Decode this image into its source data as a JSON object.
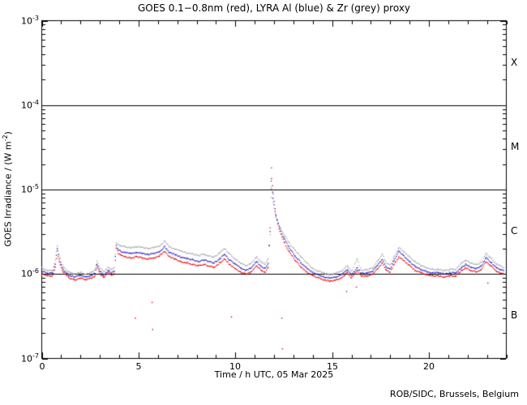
{
  "page": {
    "credit": "ROB/SIDC, Brussels, Belgium"
  },
  "chart_data": {
    "type": "line",
    "title": "GOES 0.1−0.8nm (red), LYRA Al (blue) & Zr (grey) proxy",
    "xlabel": "Time / h UTC, 05 Mar 2025",
    "ylabel_parts": {
      "pre": "GOES Irradiance / (W m",
      "sup": "-2",
      "post": ")"
    },
    "xlim": [
      0,
      24
    ],
    "ylim": [
      1e-07,
      0.001
    ],
    "x_ticks": [
      0,
      5,
      10,
      15,
      20
    ],
    "x_minor_step_h": 1,
    "y_tick_exponents": [
      -3,
      -4,
      -5,
      -6,
      -7
    ],
    "y_scale": "log",
    "grid": "off",
    "legend": "colors named in title",
    "flare_class_lines_W_m2": [
      0.0001,
      1e-05,
      1e-06
    ],
    "flare_class_labels": [
      {
        "label": "X",
        "between_exponents": [
          -4,
          -3
        ]
      },
      {
        "label": "M",
        "between_exponents": [
          -5,
          -4
        ]
      },
      {
        "label": "C",
        "between_exponents": [
          -6,
          -5
        ]
      },
      {
        "label": "B",
        "between_exponents": [
          -7,
          -6
        ]
      }
    ],
    "value_unit": "1e-6 W m^-2",
    "hours": [
      0.0,
      0.3,
      0.55,
      0.7,
      0.8,
      0.9,
      1.1,
      1.4,
      1.7,
      2.0,
      2.3,
      2.6,
      2.75,
      2.85,
      3.0,
      3.2,
      3.45,
      3.6,
      3.75,
      3.85,
      3.95,
      4.1,
      4.3,
      4.6,
      4.9,
      5.2,
      5.5,
      5.8,
      6.1,
      6.35,
      6.6,
      6.9,
      7.2,
      7.5,
      7.8,
      8.1,
      8.4,
      8.6,
      8.9,
      9.2,
      9.45,
      9.7,
      10.0,
      10.3,
      10.55,
      10.8,
      11.1,
      11.35,
      11.55,
      11.7,
      11.8,
      11.87,
      11.95,
      12.1,
      12.3,
      12.55,
      12.8,
      13.1,
      13.4,
      13.7,
      14.0,
      14.3,
      14.6,
      14.9,
      15.2,
      15.5,
      15.8,
      16.0,
      16.3,
      16.5,
      16.8,
      17.1,
      17.35,
      17.6,
      17.8,
      18.0,
      18.2,
      18.45,
      18.7,
      19.0,
      19.3,
      19.6,
      19.9,
      20.2,
      20.5,
      20.8,
      21.1,
      21.4,
      21.7,
      21.9,
      22.2,
      22.45,
      22.7,
      22.95,
      23.2,
      23.5,
      23.7,
      23.9
    ],
    "series": [
      {
        "name": "GOES 0.1-0.8nm",
        "color": "#e60000",
        "values": [
          1.0,
          0.95,
          0.95,
          1.2,
          1.9,
          1.4,
          1.05,
          0.9,
          0.85,
          0.9,
          0.85,
          0.9,
          0.95,
          1.25,
          1.0,
          0.9,
          1.05,
          0.95,
          1.0,
          2.0,
          1.75,
          1.65,
          1.6,
          1.55,
          1.6,
          1.55,
          1.5,
          1.55,
          1.65,
          1.85,
          1.6,
          1.5,
          1.4,
          1.35,
          1.3,
          1.25,
          1.3,
          1.25,
          1.2,
          1.35,
          1.5,
          1.3,
          1.15,
          1.05,
          1.0,
          1.05,
          1.25,
          1.1,
          1.05,
          1.2,
          3.5,
          18.0,
          9.0,
          5.0,
          3.2,
          2.3,
          1.8,
          1.45,
          1.2,
          1.05,
          0.95,
          0.9,
          0.85,
          0.82,
          0.85,
          0.9,
          1.05,
          0.9,
          1.1,
          0.95,
          0.95,
          1.0,
          1.15,
          1.35,
          1.1,
          1.05,
          1.3,
          1.6,
          1.45,
          1.25,
          1.1,
          1.03,
          0.98,
          0.95,
          0.95,
          0.92,
          0.95,
          0.95,
          1.1,
          1.18,
          1.1,
          1.06,
          1.12,
          1.4,
          1.25,
          1.08,
          1.03,
          1.0
        ]
      },
      {
        "name": "LYRA Al proxy",
        "color": "#1a1abf",
        "values": [
          1.08,
          1.02,
          1.02,
          1.3,
          2.0,
          1.5,
          1.12,
          0.97,
          0.92,
          0.97,
          0.92,
          0.97,
          1.02,
          1.32,
          1.08,
          0.97,
          1.1,
          1.03,
          1.1,
          2.15,
          1.95,
          1.85,
          1.8,
          1.75,
          1.8,
          1.75,
          1.7,
          1.75,
          1.85,
          2.1,
          1.8,
          1.7,
          1.58,
          1.52,
          1.47,
          1.41,
          1.47,
          1.41,
          1.35,
          1.52,
          1.7,
          1.47,
          1.3,
          1.17,
          1.1,
          1.17,
          1.4,
          1.22,
          1.16,
          1.33,
          3.2,
          13.5,
          7.8,
          4.8,
          3.4,
          2.55,
          2.02,
          1.63,
          1.35,
          1.17,
          1.04,
          0.98,
          0.92,
          0.89,
          0.92,
          0.98,
          1.12,
          0.97,
          1.18,
          1.02,
          1.02,
          1.08,
          1.27,
          1.5,
          1.2,
          1.15,
          1.45,
          1.85,
          1.65,
          1.4,
          1.22,
          1.12,
          1.06,
          1.03,
          1.03,
          1.0,
          1.03,
          1.03,
          1.2,
          1.3,
          1.2,
          1.15,
          1.23,
          1.55,
          1.38,
          1.18,
          1.12,
          1.09
        ]
      },
      {
        "name": "LYRA Zr proxy",
        "color": "#a6a6a6",
        "values": [
          1.18,
          1.1,
          1.1,
          1.45,
          2.15,
          1.7,
          1.22,
          1.05,
          1.0,
          1.05,
          1.0,
          1.05,
          1.12,
          1.42,
          1.18,
          1.06,
          1.2,
          1.12,
          1.2,
          2.3,
          2.25,
          2.15,
          2.1,
          2.05,
          2.1,
          2.05,
          2.0,
          2.05,
          2.15,
          2.45,
          2.1,
          1.98,
          1.85,
          1.78,
          1.72,
          1.65,
          1.72,
          1.65,
          1.58,
          1.78,
          2.0,
          1.72,
          1.5,
          1.33,
          1.25,
          1.33,
          1.6,
          1.38,
          1.3,
          1.5,
          2.9,
          10.5,
          7.0,
          4.6,
          3.6,
          2.85,
          2.3,
          1.9,
          1.58,
          1.35,
          1.16,
          1.08,
          1.02,
          0.98,
          1.02,
          1.08,
          1.25,
          1.07,
          1.5,
          1.12,
          1.12,
          1.18,
          1.42,
          1.7,
          1.35,
          1.28,
          1.6,
          2.05,
          1.85,
          1.6,
          1.38,
          1.25,
          1.17,
          1.13,
          1.13,
          1.1,
          1.13,
          1.14,
          1.35,
          1.45,
          1.35,
          1.28,
          1.38,
          1.75,
          1.55,
          1.32,
          1.25,
          1.2
        ]
      }
    ],
    "outlier_points_red": [
      [
        4.83,
        0.3
      ],
      [
        5.7,
        0.46
      ],
      [
        5.73,
        0.22
      ],
      [
        9.8,
        0.31
      ],
      [
        12.4,
        0.3
      ],
      [
        12.43,
        0.13
      ],
      [
        15.75,
        0.62
      ],
      [
        16.25,
        0.7
      ],
      [
        23.05,
        0.78
      ]
    ]
  },
  "colors": {
    "background": "#ffffff",
    "axis": "#000000",
    "goes_red": "#e60000",
    "lyra_al_blue": "#1a1abf",
    "lyra_zr_grey": "#a6a6a6"
  }
}
